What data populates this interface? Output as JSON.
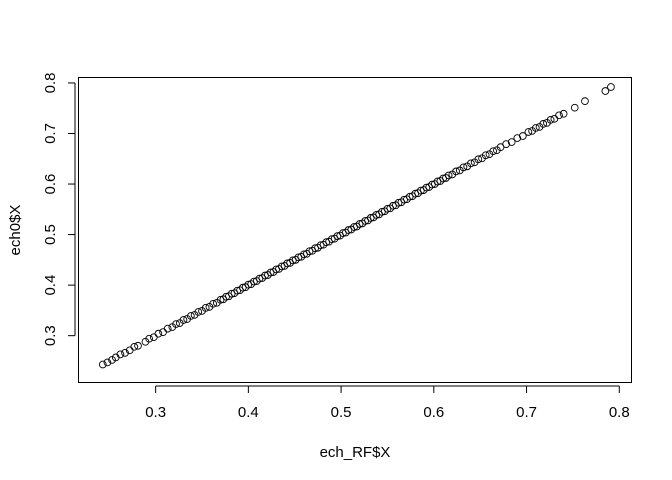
{
  "chart_data": {
    "type": "scatter",
    "xlabel": "ech_RF$X",
    "ylabel": "ech0$X",
    "xlim": [
      0.24,
      0.79
    ],
    "ylim": [
      0.24,
      0.79
    ],
    "x_ticks": [
      0.3,
      0.4,
      0.5,
      0.6,
      0.7,
      0.8
    ],
    "y_ticks": [
      0.3,
      0.4,
      0.5,
      0.6,
      0.7,
      0.8
    ],
    "x_tick_labels": [
      "0.3",
      "0.4",
      "0.5",
      "0.6",
      "0.7",
      "0.8"
    ],
    "y_tick_labels": [
      "0.3",
      "0.4",
      "0.5",
      "0.6",
      "0.7",
      "0.8"
    ],
    "grid": false,
    "marker": "open-circle",
    "point_color": "#000000",
    "series": [
      {
        "x": [
          0.243,
          0.248,
          0.253,
          0.257,
          0.262,
          0.267,
          0.272,
          0.277,
          0.281,
          0.289,
          0.293,
          0.298,
          0.303,
          0.308,
          0.313,
          0.318,
          0.322,
          0.326,
          0.33,
          0.334,
          0.338,
          0.342,
          0.346,
          0.35,
          0.354,
          0.358,
          0.362,
          0.366,
          0.37,
          0.373,
          0.376,
          0.379,
          0.382,
          0.385,
          0.388,
          0.391,
          0.394,
          0.397,
          0.4,
          0.403,
          0.406,
          0.409,
          0.412,
          0.415,
          0.418,
          0.421,
          0.424,
          0.427,
          0.43,
          0.433,
          0.436,
          0.439,
          0.442,
          0.445,
          0.448,
          0.451,
          0.454,
          0.457,
          0.46,
          0.463,
          0.466,
          0.469,
          0.472,
          0.475,
          0.478,
          0.481,
          0.484,
          0.487,
          0.49,
          0.493,
          0.496,
          0.499,
          0.502,
          0.505,
          0.508,
          0.511,
          0.514,
          0.517,
          0.52,
          0.523,
          0.526,
          0.529,
          0.532,
          0.535,
          0.538,
          0.541,
          0.544,
          0.547,
          0.55,
          0.553,
          0.556,
          0.559,
          0.562,
          0.565,
          0.568,
          0.571,
          0.574,
          0.577,
          0.58,
          0.583,
          0.586,
          0.589,
          0.592,
          0.595,
          0.598,
          0.601,
          0.604,
          0.607,
          0.61,
          0.613,
          0.616,
          0.62,
          0.624,
          0.628,
          0.632,
          0.636,
          0.64,
          0.644,
          0.648,
          0.652,
          0.656,
          0.66,
          0.664,
          0.668,
          0.672,
          0.678,
          0.684,
          0.69,
          0.696,
          0.702,
          0.706,
          0.71,
          0.714,
          0.718,
          0.722,
          0.726,
          0.73,
          0.735,
          0.74,
          0.752,
          0.763,
          0.785,
          0.791
        ],
        "y": [
          0.243,
          0.247,
          0.252,
          0.257,
          0.263,
          0.266,
          0.271,
          0.278,
          0.28,
          0.288,
          0.294,
          0.297,
          0.304,
          0.307,
          0.314,
          0.317,
          0.323,
          0.325,
          0.331,
          0.333,
          0.339,
          0.341,
          0.347,
          0.349,
          0.355,
          0.357,
          0.363,
          0.365,
          0.371,
          0.372,
          0.377,
          0.378,
          0.383,
          0.384,
          0.389,
          0.39,
          0.395,
          0.396,
          0.401,
          0.402,
          0.407,
          0.408,
          0.413,
          0.414,
          0.419,
          0.42,
          0.425,
          0.426,
          0.431,
          0.432,
          0.437,
          0.438,
          0.443,
          0.444,
          0.449,
          0.45,
          0.455,
          0.456,
          0.461,
          0.462,
          0.467,
          0.468,
          0.473,
          0.474,
          0.479,
          0.48,
          0.485,
          0.486,
          0.491,
          0.492,
          0.497,
          0.498,
          0.503,
          0.504,
          0.509,
          0.51,
          0.515,
          0.516,
          0.521,
          0.522,
          0.527,
          0.528,
          0.533,
          0.534,
          0.539,
          0.54,
          0.545,
          0.546,
          0.551,
          0.552,
          0.557,
          0.558,
          0.563,
          0.564,
          0.569,
          0.57,
          0.575,
          0.576,
          0.581,
          0.582,
          0.587,
          0.588,
          0.593,
          0.594,
          0.599,
          0.6,
          0.605,
          0.606,
          0.611,
          0.612,
          0.617,
          0.619,
          0.625,
          0.627,
          0.633,
          0.635,
          0.641,
          0.643,
          0.649,
          0.651,
          0.657,
          0.659,
          0.665,
          0.667,
          0.673,
          0.679,
          0.683,
          0.691,
          0.695,
          0.703,
          0.705,
          0.711,
          0.713,
          0.719,
          0.721,
          0.727,
          0.729,
          0.736,
          0.739,
          0.751,
          0.764,
          0.784,
          0.792
        ]
      }
    ]
  }
}
